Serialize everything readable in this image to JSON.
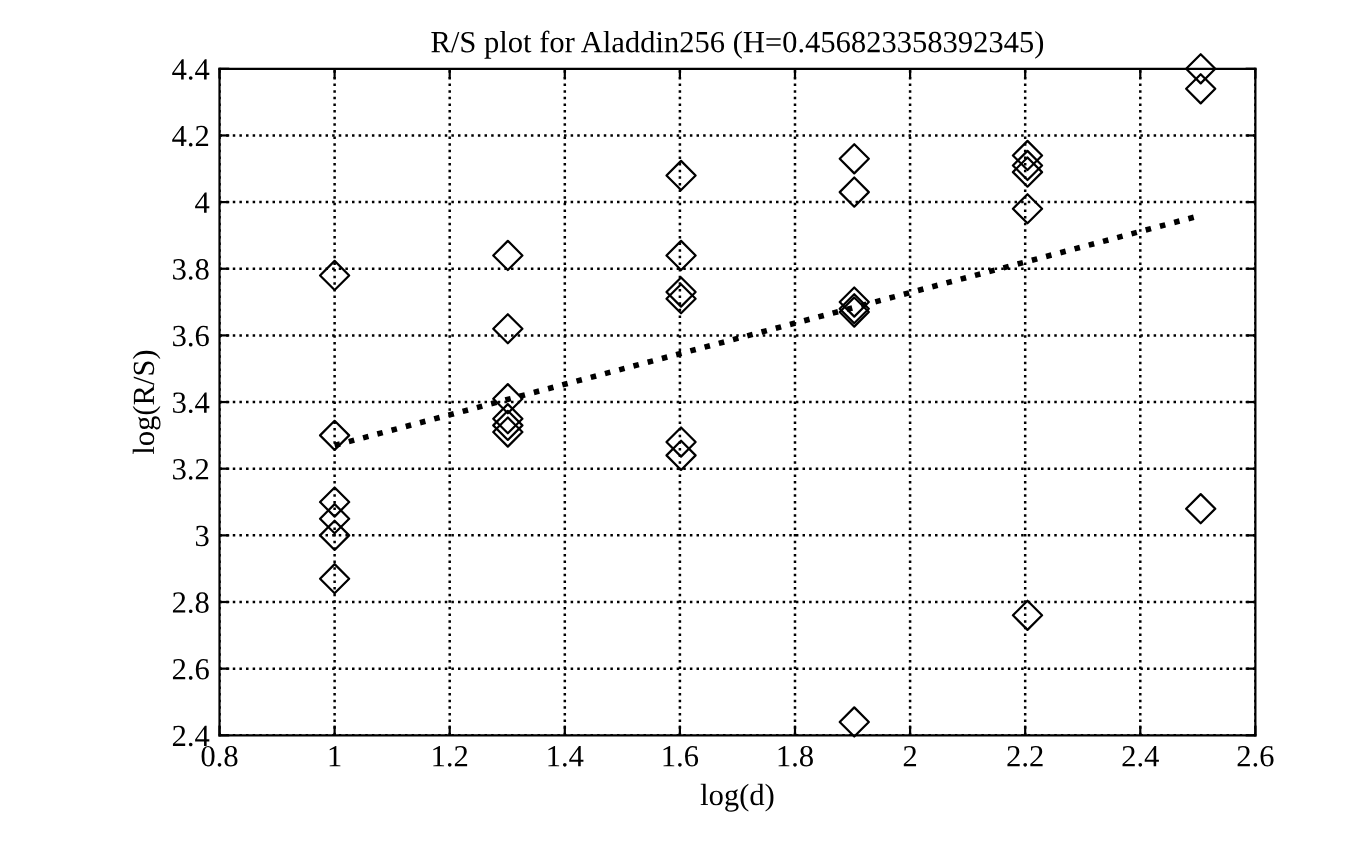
{
  "chart_data": {
    "type": "scatter",
    "title": "R/S plot for Aladdin256 (H=0.456823358392345)",
    "xlabel": "log(d)",
    "ylabel": "log(R/S)",
    "series": [
      {
        "color": "#000000",
        "marker": "diamond",
        "x": [
          1,
          1,
          1,
          1,
          1,
          1,
          1.301,
          1.301,
          1.301,
          1.301,
          1.301,
          1.301,
          1.602,
          1.602,
          1.602,
          1.602,
          1.602,
          1.602,
          1.903,
          1.903,
          1.903,
          1.903,
          1.903,
          1.903,
          2.204,
          2.204,
          2.204,
          2.204,
          2.204,
          2.505,
          2.505,
          2.505
        ],
        "values": [
          3.78,
          3.3,
          3.1,
          3.05,
          3.0,
          2.87,
          3.84,
          3.62,
          3.41,
          3.35,
          3.33,
          3.31,
          4.08,
          3.84,
          3.73,
          3.71,
          3.28,
          3.24,
          4.13,
          4.03,
          3.7,
          3.68,
          3.67,
          2.44,
          4.14,
          4.11,
          4.09,
          3.98,
          2.76,
          4.4,
          4.34,
          3.08
        ]
      },
      {
        "type": "line",
        "color": "#000000",
        "line_style": "dotted",
        "marker": "none",
        "x": [
          1,
          2.505
        ],
        "values": [
          3.27,
          3.96
        ]
      }
    ],
    "xlim": [
      0.8,
      2.6
    ],
    "xticks": [
      0.8,
      1,
      1.2,
      1.4,
      1.6,
      1.8,
      2,
      2.2,
      2.4,
      2.6
    ],
    "ylim": [
      2.4,
      4.4
    ],
    "yticks": [
      2.4,
      2.6,
      2.8,
      3,
      3.2,
      3.4,
      3.6,
      3.8,
      4,
      4.2,
      4.4
    ],
    "grid": true,
    "legend": false
  }
}
